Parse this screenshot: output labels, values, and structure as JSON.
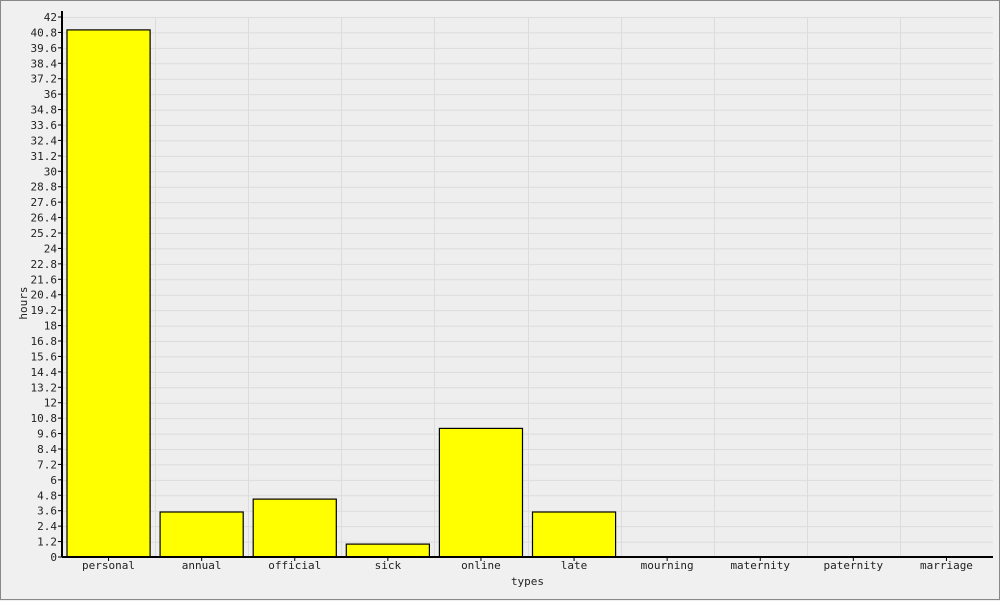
{
  "chart_data": {
    "type": "bar",
    "categories": [
      "personal",
      "annual",
      "official",
      "sick",
      "online",
      "late",
      "mourning",
      "maternity",
      "paternity",
      "marriage"
    ],
    "values": [
      41,
      3.5,
      4.5,
      1,
      10,
      3.5,
      0,
      0,
      0,
      0
    ],
    "title": "",
    "xlabel": "types",
    "ylabel": "hours",
    "ylim": [
      0,
      42
    ],
    "yticks": [
      0,
      1.2,
      2.4,
      3.6,
      4.8,
      6,
      7.2,
      8.4,
      9.6,
      10.8,
      12,
      13.2,
      14.4,
      15.6,
      16.8,
      18,
      19.2,
      20.4,
      21.6,
      22.8,
      24,
      25.2,
      26.4,
      27.6,
      28.8,
      30,
      31.2,
      32.4,
      33.6,
      34.8,
      36,
      37.2,
      38.4,
      39.6,
      40.8,
      42
    ],
    "grid": true,
    "legend": "none",
    "colors": {
      "bar_fill": "#ffff00",
      "bar_stroke": "#000000",
      "plot_background": "#eeeeee",
      "grid": "#dcdcdc",
      "axis": "#000000"
    }
  }
}
